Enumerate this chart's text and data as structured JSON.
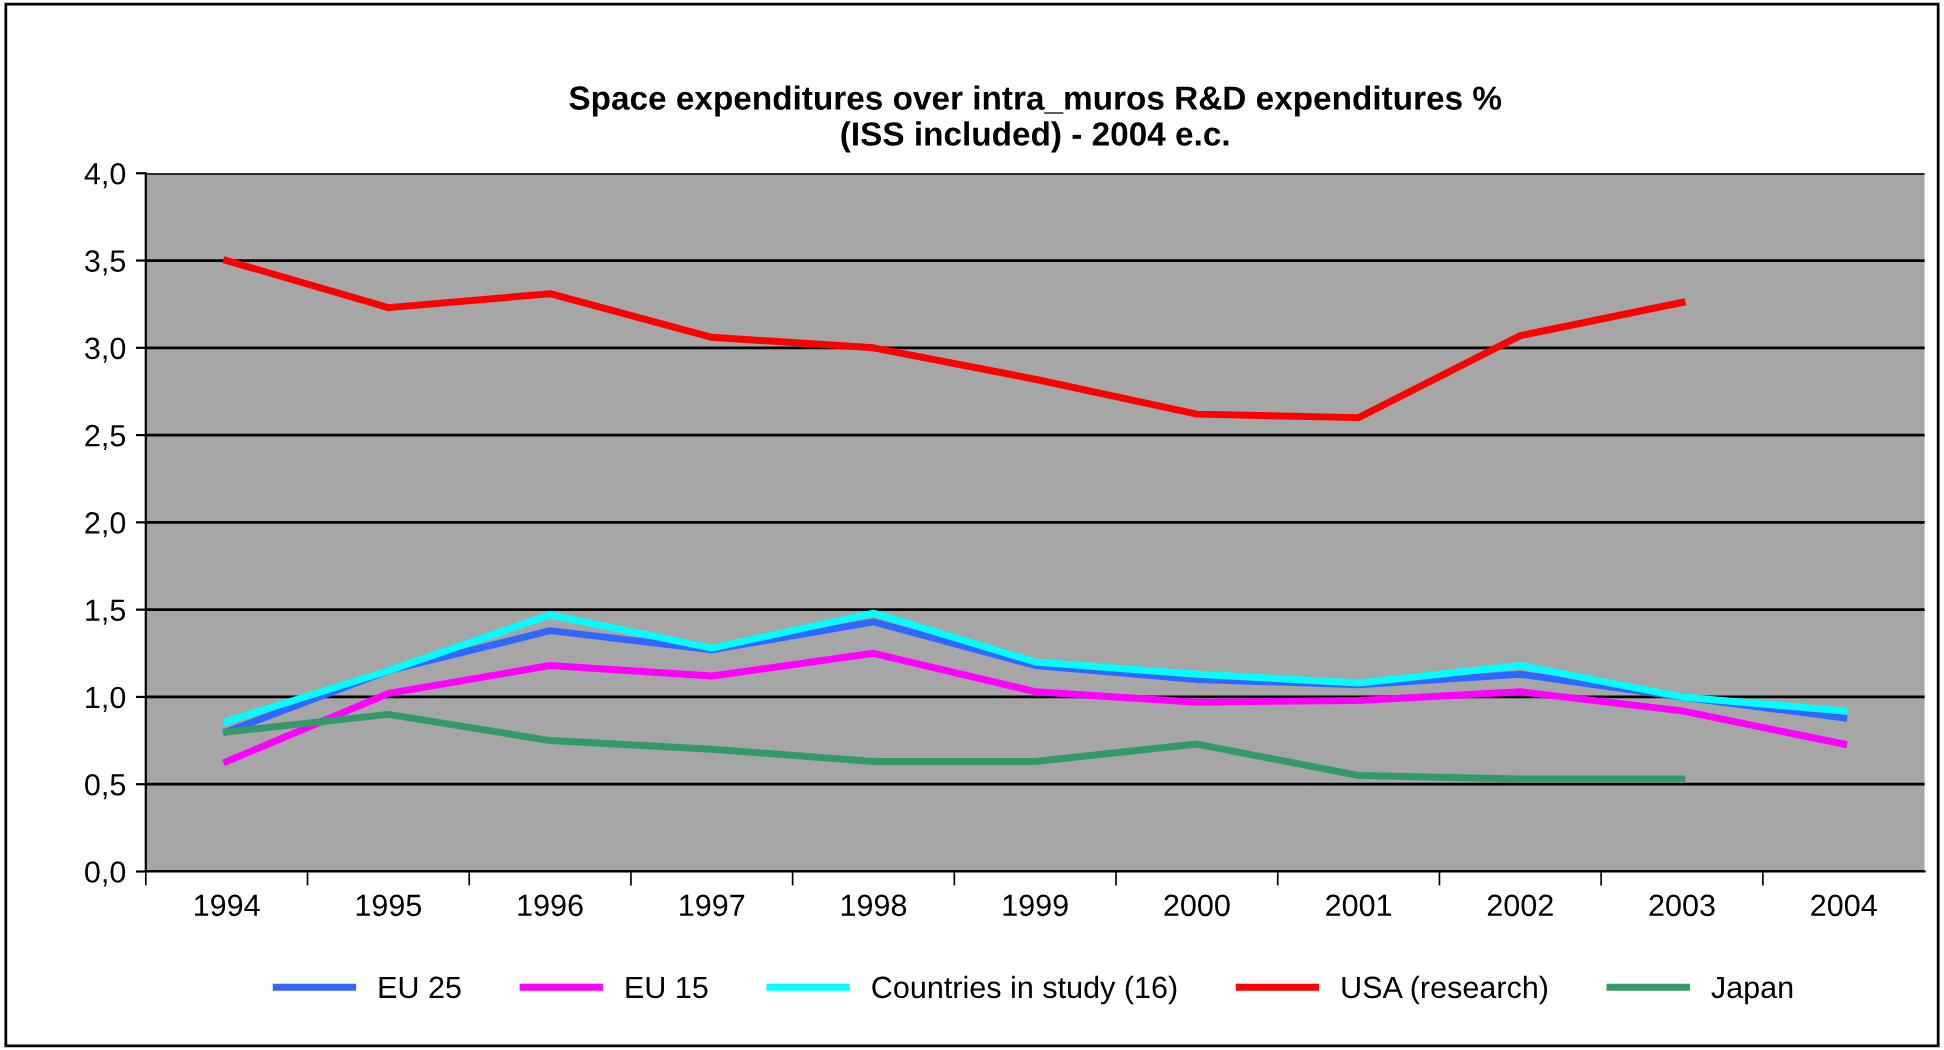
{
  "chart_data": {
    "type": "line",
    "title": "Space expenditures over intra_muros R&D expenditures %\n(ISS included) - 2004 e.c.",
    "categories": [
      "1994",
      "1995",
      "1996",
      "1997",
      "1998",
      "1999",
      "2000",
      "2001",
      "2002",
      "2003",
      "2004"
    ],
    "series": [
      {
        "name": "EU 25",
        "color": "#3366ff",
        "values": [
          0.8,
          1.15,
          1.38,
          1.27,
          1.43,
          1.18,
          1.1,
          1.07,
          1.13,
          1.0,
          0.88
        ]
      },
      {
        "name": "EU 15",
        "color": "#ff00ff",
        "values": [
          0.63,
          1.02,
          1.18,
          1.12,
          1.25,
          1.03,
          0.97,
          0.98,
          1.03,
          0.92,
          0.73
        ]
      },
      {
        "name": "Countries in study (16)",
        "color": "#00ffff",
        "values": [
          0.86,
          1.15,
          1.47,
          1.28,
          1.48,
          1.2,
          1.13,
          1.08,
          1.18,
          1.0,
          0.92
        ]
      },
      {
        "name": "USA (research)",
        "color": "#ff0000",
        "values": [
          3.5,
          3.23,
          3.31,
          3.06,
          3.0,
          2.82,
          2.62,
          2.6,
          3.07,
          3.26,
          null
        ]
      },
      {
        "name": "Japan",
        "color": "#339966",
        "values": [
          0.8,
          0.9,
          0.75,
          0.7,
          0.63,
          0.63,
          0.73,
          0.55,
          0.53,
          0.53,
          null
        ]
      }
    ],
    "ylim": [
      0,
      4
    ],
    "yticks": [
      {
        "value": 0,
        "label": "0,0"
      },
      {
        "value": 0.5,
        "label": "0,5"
      },
      {
        "value": 1,
        "label": "1,0"
      },
      {
        "value": 1.5,
        "label": "1,5"
      },
      {
        "value": 2,
        "label": "2,0"
      },
      {
        "value": 2.5,
        "label": "2,5"
      },
      {
        "value": 3,
        "label": "3,0"
      },
      {
        "value": 3.5,
        "label": "3,5"
      },
      {
        "value": 4,
        "label": "4,0"
      }
    ],
    "grid": "y",
    "legend": "bottom",
    "marker": "none",
    "line_style": "solid"
  }
}
